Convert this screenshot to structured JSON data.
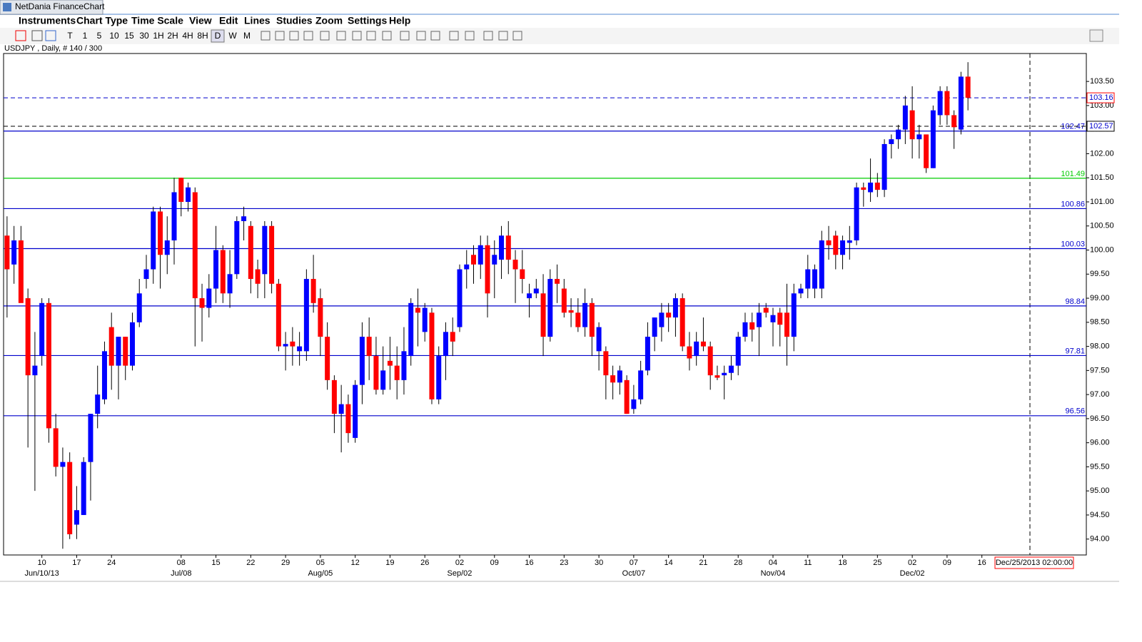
{
  "window_title": "NetDania FinanceChart",
  "menu": [
    "Instruments",
    "Chart Type",
    "Time Scale",
    "View",
    "Edit",
    "Lines",
    "Studies",
    "Zoom",
    "Settings",
    "Help"
  ],
  "toolbar": [
    "T",
    "1",
    "5",
    "10",
    "15",
    "30",
    "1H",
    "2H",
    "4H",
    "8H",
    "D",
    "W",
    "M"
  ],
  "chart_label": "USDJPY , Daily, # 140 / 300",
  "chart_data": {
    "type": "candlestick",
    "up_color": "#0000ff",
    "down_color": "#ff0000",
    "candles": [
      [
        100.3,
        100.7,
        98.6,
        99.6
      ],
      [
        99.7,
        100.5,
        99.3,
        100.2
      ],
      [
        100.2,
        100.5,
        99.0,
        98.9
      ],
      [
        99.0,
        99.2,
        95.9,
        97.4
      ],
      [
        97.4,
        98.3,
        95.0,
        97.6
      ],
      [
        97.8,
        99.0,
        97.6,
        98.9
      ],
      [
        98.9,
        99.0,
        96.0,
        96.3
      ],
      [
        96.3,
        96.6,
        95.3,
        95.5
      ],
      [
        95.5,
        95.9,
        93.8,
        95.6
      ],
      [
        95.6,
        95.8,
        94.0,
        94.1
      ],
      [
        94.3,
        95.1,
        94.0,
        94.6
      ],
      [
        94.5,
        95.7,
        94.5,
        95.6
      ],
      [
        95.6,
        96.6,
        94.8,
        96.6
      ],
      [
        96.6,
        97.6,
        96.3,
        97.0
      ],
      [
        96.9,
        98.1,
        96.8,
        97.9
      ],
      [
        98.4,
        98.7,
        97.1,
        97.6
      ],
      [
        97.6,
        98.2,
        96.9,
        98.2
      ],
      [
        98.2,
        98.2,
        97.3,
        97.6
      ],
      [
        97.6,
        98.7,
        97.5,
        98.5
      ],
      [
        98.5,
        99.4,
        98.4,
        99.1
      ],
      [
        99.4,
        99.9,
        99.2,
        99.6
      ],
      [
        99.6,
        100.9,
        99.3,
        100.8
      ],
      [
        100.8,
        100.9,
        99.2,
        99.9
      ],
      [
        99.9,
        100.7,
        99.5,
        100.2
      ],
      [
        100.2,
        101.5,
        99.7,
        101.2
      ],
      [
        101.5,
        101.5,
        100.7,
        101.0
      ],
      [
        101.0,
        101.4,
        100.8,
        101.3
      ],
      [
        101.2,
        101.3,
        98.0,
        99.0
      ],
      [
        99.0,
        99.3,
        98.1,
        98.8
      ],
      [
        98.8,
        99.5,
        98.6,
        99.2
      ],
      [
        99.2,
        100.5,
        98.9,
        100.0
      ],
      [
        100.0,
        100.1,
        98.9,
        99.1
      ],
      [
        99.1,
        100.0,
        98.8,
        99.5
      ],
      [
        99.5,
        100.7,
        99.4,
        100.6
      ],
      [
        100.6,
        100.9,
        100.2,
        100.7
      ],
      [
        100.5,
        100.6,
        99.1,
        99.4
      ],
      [
        99.6,
        99.8,
        99.0,
        99.3
      ],
      [
        99.5,
        100.6,
        99.0,
        100.5
      ],
      [
        100.5,
        100.6,
        99.1,
        99.3
      ],
      [
        99.3,
        99.4,
        97.9,
        98.0
      ],
      [
        98.0,
        98.3,
        97.5,
        98.05
      ],
      [
        98.1,
        98.4,
        97.6,
        98.0
      ],
      [
        97.9,
        98.3,
        97.6,
        98.0
      ],
      [
        97.9,
        99.6,
        97.7,
        99.4
      ],
      [
        99.4,
        99.9,
        98.7,
        98.9
      ],
      [
        99.0,
        99.2,
        97.8,
        98.2
      ],
      [
        98.2,
        98.5,
        97.1,
        97.3
      ],
      [
        97.3,
        97.4,
        96.2,
        96.6
      ],
      [
        96.6,
        97.2,
        95.8,
        96.8
      ],
      [
        96.8,
        97.0,
        96.0,
        96.2
      ],
      [
        96.1,
        97.3,
        96.0,
        97.2
      ],
      [
        97.2,
        98.5,
        96.8,
        98.2
      ],
      [
        98.2,
        98.6,
        97.3,
        97.8
      ],
      [
        97.8,
        98.2,
        97.0,
        97.1
      ],
      [
        97.1,
        98.0,
        97.0,
        97.5
      ],
      [
        97.7,
        98.2,
        97.1,
        97.6
      ],
      [
        97.6,
        98.0,
        96.9,
        97.3
      ],
      [
        97.3,
        98.4,
        97.0,
        97.9
      ],
      [
        97.8,
        99.0,
        97.6,
        98.9
      ],
      [
        98.8,
        99.2,
        98.0,
        98.7
      ],
      [
        98.3,
        98.9,
        98.1,
        98.8
      ],
      [
        98.7,
        98.8,
        96.8,
        96.9
      ],
      [
        96.9,
        98.0,
        96.8,
        97.8
      ],
      [
        97.8,
        98.5,
        97.3,
        98.3
      ],
      [
        98.3,
        98.6,
        97.8,
        98.1
      ],
      [
        98.4,
        99.7,
        98.3,
        99.6
      ],
      [
        99.6,
        100.0,
        99.2,
        99.7
      ],
      [
        99.9,
        100.1,
        99.3,
        99.7
      ],
      [
        99.7,
        100.3,
        99.4,
        100.1
      ],
      [
        100.1,
        100.3,
        98.6,
        99.1
      ],
      [
        99.7,
        100.2,
        99.0,
        99.9
      ],
      [
        99.8,
        100.5,
        99.4,
        100.3
      ],
      [
        100.3,
        100.6,
        99.5,
        99.8
      ],
      [
        99.8,
        100.0,
        98.9,
        99.6
      ],
      [
        99.6,
        100.0,
        99.1,
        99.4
      ],
      [
        99.0,
        99.3,
        98.6,
        99.1
      ],
      [
        99.1,
        99.4,
        99.0,
        99.2
      ],
      [
        99.1,
        99.5,
        97.8,
        98.2
      ],
      [
        98.2,
        99.6,
        98.1,
        99.4
      ],
      [
        99.4,
        99.7,
        98.9,
        99.3
      ],
      [
        99.2,
        99.4,
        98.6,
        98.7
      ],
      [
        98.75,
        99.0,
        98.4,
        98.7
      ],
      [
        98.7,
        99.0,
        98.3,
        98.4
      ],
      [
        98.4,
        99.2,
        98.2,
        98.9
      ],
      [
        98.9,
        99.0,
        97.8,
        98.2
      ],
      [
        97.9,
        98.5,
        97.5,
        98.4
      ],
      [
        97.9,
        98.0,
        96.9,
        97.4
      ],
      [
        97.4,
        97.6,
        96.9,
        97.25
      ],
      [
        97.25,
        97.6,
        97.0,
        97.5
      ],
      [
        97.3,
        97.4,
        96.6,
        96.6
      ],
      [
        96.7,
        97.2,
        96.6,
        96.9
      ],
      [
        96.9,
        97.7,
        96.8,
        97.5
      ],
      [
        97.5,
        98.5,
        97.4,
        98.2
      ],
      [
        98.2,
        98.6,
        97.9,
        98.6
      ],
      [
        98.4,
        98.9,
        98.1,
        98.7
      ],
      [
        98.7,
        98.9,
        98.3,
        98.6
      ],
      [
        98.6,
        99.1,
        98.2,
        99.0
      ],
      [
        99.0,
        99.1,
        97.9,
        98.0
      ],
      [
        98.0,
        98.3,
        97.5,
        97.75
      ],
      [
        97.8,
        98.3,
        97.6,
        98.1
      ],
      [
        98.1,
        98.6,
        97.9,
        98.0
      ],
      [
        98.0,
        98.1,
        97.1,
        97.4
      ],
      [
        97.4,
        97.6,
        97.3,
        97.35
      ],
      [
        97.4,
        97.6,
        96.9,
        97.45
      ],
      [
        97.45,
        97.8,
        97.3,
        97.6
      ],
      [
        97.6,
        98.3,
        97.4,
        98.2
      ],
      [
        98.2,
        98.7,
        98.1,
        98.5
      ],
      [
        98.5,
        98.7,
        98.1,
        98.35
      ],
      [
        98.4,
        98.9,
        97.8,
        98.7
      ],
      [
        98.8,
        98.9,
        98.6,
        98.7
      ],
      [
        98.5,
        98.8,
        98.0,
        98.65
      ],
      [
        98.7,
        98.8,
        98.0,
        98.45
      ],
      [
        98.7,
        99.3,
        97.6,
        98.2
      ],
      [
        98.2,
        99.3,
        97.9,
        99.1
      ],
      [
        99.1,
        99.3,
        99.0,
        99.2
      ],
      [
        99.2,
        99.9,
        99.0,
        99.6
      ],
      [
        99.2,
        99.7,
        99.0,
        99.6
      ],
      [
        99.2,
        100.4,
        99.0,
        100.2
      ],
      [
        100.2,
        100.5,
        99.8,
        100.1
      ],
      [
        100.3,
        100.4,
        99.6,
        99.9
      ],
      [
        99.9,
        100.3,
        99.6,
        100.2
      ],
      [
        100.15,
        100.5,
        99.8,
        100.2
      ],
      [
        100.2,
        101.4,
        100.1,
        101.3
      ],
      [
        101.3,
        101.4,
        100.9,
        101.25
      ],
      [
        101.2,
        101.9,
        101.0,
        101.4
      ],
      [
        101.4,
        101.6,
        101.1,
        101.25
      ],
      [
        101.25,
        102.3,
        101.1,
        102.2
      ],
      [
        102.2,
        102.4,
        101.9,
        102.3
      ],
      [
        102.3,
        102.6,
        102.1,
        102.5
      ],
      [
        102.5,
        103.2,
        102.2,
        103.0
      ],
      [
        102.9,
        103.4,
        101.9,
        102.3
      ],
      [
        102.3,
        102.6,
        101.9,
        102.4
      ],
      [
        102.4,
        102.4,
        101.6,
        101.7
      ],
      [
        101.7,
        103.0,
        101.7,
        102.9
      ],
      [
        102.8,
        103.4,
        102.6,
        103.3
      ],
      [
        103.3,
        103.4,
        102.6,
        102.8
      ],
      [
        102.8,
        102.9,
        102.1,
        102.55
      ],
      [
        102.5,
        103.7,
        102.4,
        103.6
      ],
      [
        103.6,
        103.9,
        102.9,
        103.16
      ]
    ],
    "xlim": [
      -0.5,
      155
    ],
    "ylim": [
      93.67,
      104.08
    ],
    "yticks": [
      {
        "value": 94,
        "label": "94.00"
      },
      {
        "value": 94.5,
        "label": "94.50"
      },
      {
        "value": 95,
        "label": "95.00"
      },
      {
        "value": 95.5,
        "label": "95.50"
      },
      {
        "value": 96,
        "label": "96.00"
      },
      {
        "value": 96.5,
        "label": "96.50"
      },
      {
        "value": 97,
        "label": "97.00"
      },
      {
        "value": 97.5,
        "label": "97.50"
      },
      {
        "value": 98,
        "label": "98.00"
      },
      {
        "value": 98.5,
        "label": "98.50"
      },
      {
        "value": 99,
        "label": "99.00"
      },
      {
        "value": 99.5,
        "label": "99.50"
      },
      {
        "value": 100,
        "label": "100.00"
      },
      {
        "value": 100.5,
        "label": "100.50"
      },
      {
        "value": 101,
        "label": "101.00"
      },
      {
        "value": 101.5,
        "label": "101.50"
      },
      {
        "value": 102,
        "label": "102.00"
      },
      {
        "value": 102.5,
        "label": "102.50"
      },
      {
        "value": 103,
        "label": "103.00"
      },
      {
        "value": 103.5,
        "label": "103.50"
      }
    ],
    "xticks": [
      {
        "value": 5,
        "label": "10"
      },
      {
        "value": 10,
        "label": "17"
      },
      {
        "value": 15,
        "label": "24"
      },
      {
        "value": 25,
        "label": "08"
      },
      {
        "value": 30,
        "label": "15"
      },
      {
        "value": 35,
        "label": "22"
      },
      {
        "value": 40,
        "label": "29"
      },
      {
        "value": 45,
        "label": "05"
      },
      {
        "value": 50,
        "label": "12"
      },
      {
        "value": 55,
        "label": "19"
      },
      {
        "value": 60,
        "label": "26"
      },
      {
        "value": 65,
        "label": "02"
      },
      {
        "value": 70,
        "label": "09"
      },
      {
        "value": 75,
        "label": "16"
      },
      {
        "value": 80,
        "label": "23"
      },
      {
        "value": 85,
        "label": "30"
      },
      {
        "value": 90,
        "label": "07"
      },
      {
        "value": 95,
        "label": "14"
      },
      {
        "value": 100,
        "label": "21"
      },
      {
        "value": 105,
        "label": "28"
      },
      {
        "value": 110,
        "label": "04"
      },
      {
        "value": 115,
        "label": "11"
      },
      {
        "value": 120,
        "label": "18"
      },
      {
        "value": 125,
        "label": "25"
      },
      {
        "value": 130,
        "label": "02"
      },
      {
        "value": 135,
        "label": "09"
      },
      {
        "value": 140,
        "label": "16"
      }
    ],
    "month_ticks": [
      {
        "value": 5,
        "label": "Jun/10/13"
      },
      {
        "value": 25,
        "label": "Jul/08"
      },
      {
        "value": 45,
        "label": "Aug/05"
      },
      {
        "value": 65,
        "label": "Sep/02"
      },
      {
        "value": 90,
        "label": "Oct/07"
      },
      {
        "value": 110,
        "label": "Nov/04"
      },
      {
        "value": 130,
        "label": "Dec/02"
      }
    ],
    "lines": [
      {
        "value": 102.47,
        "color": "#0000cc"
      },
      {
        "value": 101.49,
        "color": "#00cc00"
      },
      {
        "value": 100.86,
        "color": "#0000cc"
      },
      {
        "value": 100.03,
        "color": "#0000cc"
      },
      {
        "value": 98.84,
        "color": "#0000cc"
      },
      {
        "value": 97.81,
        "color": "#0000cc"
      },
      {
        "value": 96.56,
        "color": "#0000cc"
      }
    ],
    "price_markers": [
      {
        "value": 103.16,
        "color": "#0000cc",
        "box": "#ff0000"
      },
      {
        "value": 102.57,
        "color": "#000000",
        "box": "#000000"
      }
    ],
    "cursor_label": "Dec/25/2013 02:00:00"
  }
}
